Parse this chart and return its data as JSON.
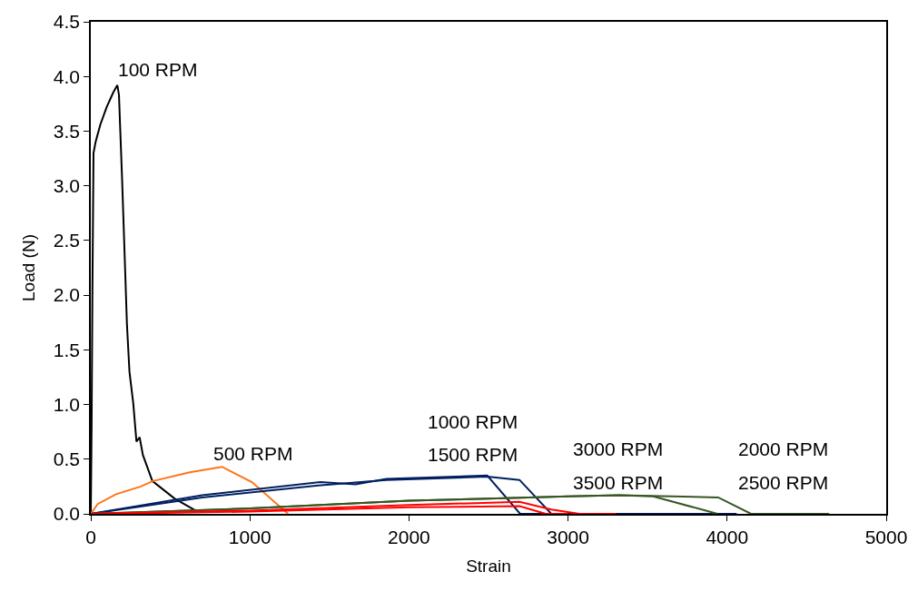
{
  "chart_data": {
    "type": "line",
    "xlabel": "Strain",
    "ylabel": "Load (N)",
    "xlim": [
      0,
      5000
    ],
    "ylim": [
      0,
      4.5
    ],
    "xticks": [
      0,
      1000,
      2000,
      3000,
      4000,
      5000
    ],
    "yticks": [
      {
        "value": 0,
        "label": "0.0"
      },
      {
        "value": 0.5,
        "label": "0.5"
      },
      {
        "value": 1,
        "label": "1.0"
      },
      {
        "value": 1.5,
        "label": "1.5"
      },
      {
        "value": 2,
        "label": "2.0"
      },
      {
        "value": 2.5,
        "label": "2.5"
      },
      {
        "value": 3,
        "label": "3.0"
      },
      {
        "value": 3.5,
        "label": "3.5"
      },
      {
        "value": 4,
        "label": "4.0"
      },
      {
        "value": 4.5,
        "label": "4.5"
      }
    ],
    "marker": "none",
    "line_style": "solid",
    "series": [
      {
        "color": "#000000",
        "x": [
          0,
          5,
          10,
          17,
          30,
          60,
          100,
          140,
          167,
          177,
          197,
          217,
          227,
          243,
          267,
          287,
          307,
          327,
          387,
          526,
          646,
          666
        ],
        "values": [
          0,
          0.8,
          2.0,
          3.3,
          3.4,
          3.56,
          3.72,
          3.85,
          3.92,
          3.83,
          3.05,
          2.18,
          1.74,
          1.3,
          1.01,
          0.66,
          0.7,
          0.54,
          0.3,
          0.14,
          0.04,
          0.03
        ]
      },
      {
        "color": "#ff7518",
        "x": [
          0,
          43,
          159,
          314,
          391,
          622,
          825,
          1013,
          1240
        ],
        "values": [
          0,
          0.09,
          0.18,
          0.25,
          0.3,
          0.38,
          0.43,
          0.29,
          0
        ]
      },
      {
        "color": "#002060",
        "x": [
          0,
          700,
          1443,
          1665,
          1858,
          2492,
          2699,
          4060
        ],
        "values": [
          0,
          0.17,
          0.29,
          0.27,
          0.32,
          0.35,
          0,
          0
        ]
      },
      {
        "color": "#002060",
        "x": [
          0,
          700,
          1430,
          1858,
          2492,
          2695,
          2895,
          3100
        ],
        "values": [
          0,
          0.15,
          0.26,
          0.31,
          0.34,
          0.31,
          0,
          0
        ]
      },
      {
        "color": "#375623",
        "x": [
          0,
          1000,
          2000,
          2500,
          3000,
          3320,
          3535,
          3940
        ],
        "values": [
          0,
          0.05,
          0.12,
          0.14,
          0.16,
          0.17,
          0.16,
          0
        ]
      },
      {
        "color": "#375623",
        "x": [
          0,
          1000,
          2000,
          2500,
          3000,
          3320,
          3944,
          4150,
          4641
        ],
        "values": [
          0,
          0.05,
          0.12,
          0.14,
          0.16,
          0.17,
          0.15,
          0,
          0
        ]
      },
      {
        "color": "#ff0000",
        "x": [
          0,
          1000,
          2000,
          2695,
          2895,
          3072,
          3300
        ],
        "values": [
          0,
          0.03,
          0.08,
          0.11,
          0.04,
          0,
          0
        ]
      },
      {
        "color": "#ff0000",
        "x": [
          0,
          1000,
          2000,
          2695,
          2860,
          3000
        ],
        "values": [
          0,
          0.02,
          0.06,
          0.07,
          0,
          0
        ]
      }
    ],
    "annotations": [
      "100 RPM",
      "500 RPM",
      "1000 RPM",
      "1500 RPM",
      "3000 RPM",
      "3500 RPM",
      "2000 RPM",
      "2500 RPM"
    ]
  }
}
